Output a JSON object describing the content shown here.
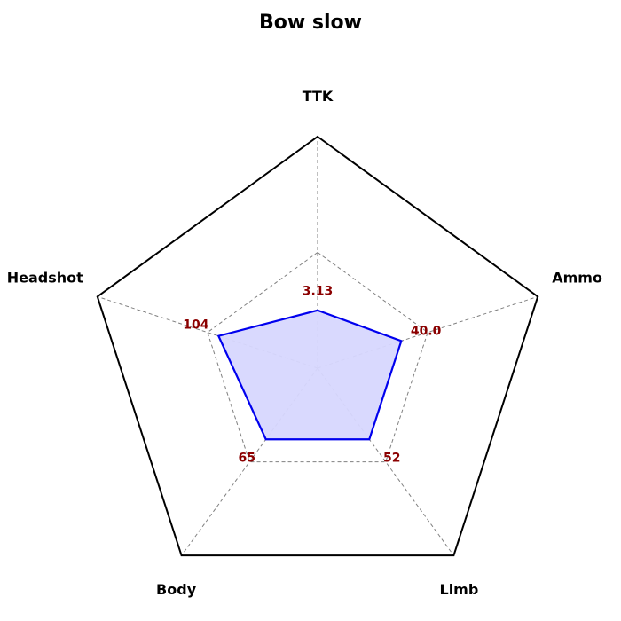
{
  "chart_data": {
    "type": "radar",
    "title": "Bow slow",
    "axes": [
      "TTK",
      "Ammo",
      "Limb",
      "Body",
      "Headshot"
    ],
    "values": [
      0.25,
      0.38,
      0.38,
      0.38,
      0.45
    ],
    "value_labels": [
      "3.13",
      "40.0",
      "52",
      "65",
      "104"
    ],
    "range": [
      0,
      1
    ],
    "grid": true,
    "colors": {
      "series_line": "#0000ee",
      "series_fill": "#d7d7fe",
      "frame": "#000000",
      "grid": "#808080",
      "value_label": "#8b0000"
    }
  }
}
